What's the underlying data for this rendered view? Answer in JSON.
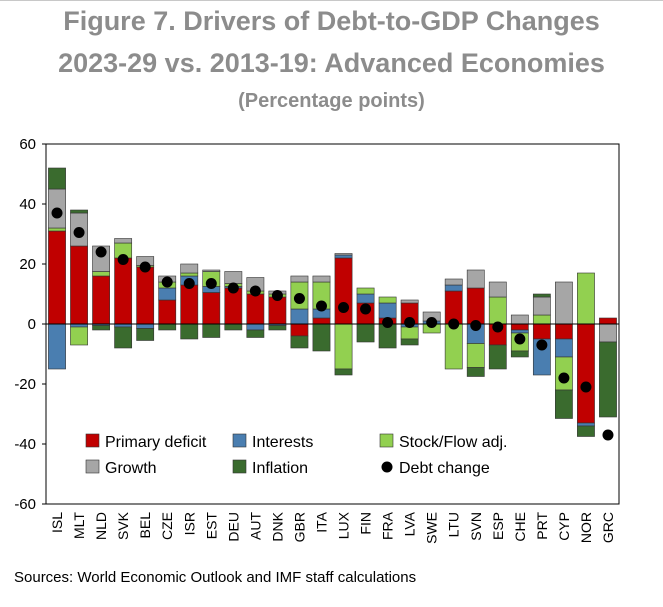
{
  "title_line1": "Figure 7. Drivers of Debt-to-GDP Changes",
  "title_line2": "2023-29 vs. 2013-19: Advanced Economies",
  "subtitle": "(Percentage points)",
  "source": "Sources: World Economic Outlook and IMF staff calculations",
  "colors": {
    "primary": "#c00000",
    "interests": "#4a7eb0",
    "stock": "#92d050",
    "growth": "#a6a6a6",
    "inflation": "#3a6b2e",
    "debt": "#000000"
  },
  "chart_data": {
    "type": "bar",
    "stacked": true,
    "ylim": [
      -60,
      60
    ],
    "yticks": [
      -60,
      -40,
      -20,
      0,
      20,
      40,
      60
    ],
    "categories": [
      "ISL",
      "MLT",
      "NLD",
      "SVK",
      "BEL",
      "CZE",
      "ISR",
      "EST",
      "DEU",
      "AUT",
      "DNK",
      "GBR",
      "ITA",
      "LUX",
      "FIN",
      "FRA",
      "LVA",
      "SWE",
      "LTU",
      "SVN",
      "ESP",
      "CHE",
      "PRT",
      "CYP",
      "NOR",
      "GRC"
    ],
    "series": [
      {
        "key": "primary",
        "name": "Primary deficit",
        "values": [
          31,
          26,
          16,
          22,
          19,
          8,
          13,
          10.5,
          12,
          10,
          9,
          -4,
          2,
          22,
          7,
          2,
          7,
          0,
          11,
          12,
          -7,
          -2,
          -5,
          -5,
          -33,
          2
        ]
      },
      {
        "key": "interests",
        "name": "Interests",
        "values": [
          -15,
          -1,
          -0.5,
          -1,
          -1.5,
          4,
          3,
          2,
          0.5,
          -2,
          -0.5,
          5,
          3,
          1,
          3,
          5,
          -1,
          1,
          2,
          -6.5,
          0,
          -1,
          -12,
          -6,
          -1,
          0
        ]
      },
      {
        "key": "stock",
        "name": "Stock/Flow adj.",
        "values": [
          1,
          -6,
          1.5,
          5,
          0.5,
          2,
          1,
          5,
          1,
          1,
          1,
          9,
          9,
          -15,
          2,
          2,
          -4,
          -3,
          -15,
          -8,
          9,
          -6,
          3,
          -11,
          17,
          0
        ]
      },
      {
        "key": "growth",
        "name": "Growth",
        "values": [
          13,
          11,
          8.5,
          1.5,
          3,
          2,
          3,
          0.5,
          4,
          4.5,
          1,
          2,
          2,
          0.5,
          0,
          0,
          1,
          3,
          2,
          6,
          5,
          3,
          6,
          14,
          0,
          -6
        ]
      },
      {
        "key": "inflation",
        "name": "Inflation",
        "values": [
          7,
          1,
          -1.5,
          -7,
          -4,
          -2,
          -5,
          -4.5,
          -2,
          -2.5,
          -1.5,
          -4,
          -9,
          -2,
          -6,
          -8,
          -2,
          0,
          0,
          -3,
          -8,
          -2,
          1,
          -9.5,
          -3.5,
          -25
        ]
      }
    ],
    "debt_change": {
      "name": "Debt change",
      "values": [
        37,
        30.5,
        24,
        21.5,
        19,
        14,
        13.5,
        13.5,
        12,
        11,
        9.5,
        8.5,
        6,
        5.5,
        5,
        0.5,
        0.5,
        0.5,
        0,
        -0.5,
        -1,
        -5,
        -7,
        -18,
        -21,
        -37
      ]
    },
    "legend": {
      "placement": "bottom-left",
      "items": [
        {
          "key": "primary",
          "label": "Primary deficit",
          "marker": "square"
        },
        {
          "key": "interests",
          "label": "Interests",
          "marker": "square"
        },
        {
          "key": "stock",
          "label": "Stock/Flow adj.",
          "marker": "square"
        },
        {
          "key": "growth",
          "label": "Growth",
          "marker": "square"
        },
        {
          "key": "inflation",
          "label": "Inflation",
          "marker": "square"
        },
        {
          "key": "debt",
          "label": "Debt change",
          "marker": "dot"
        }
      ]
    }
  }
}
